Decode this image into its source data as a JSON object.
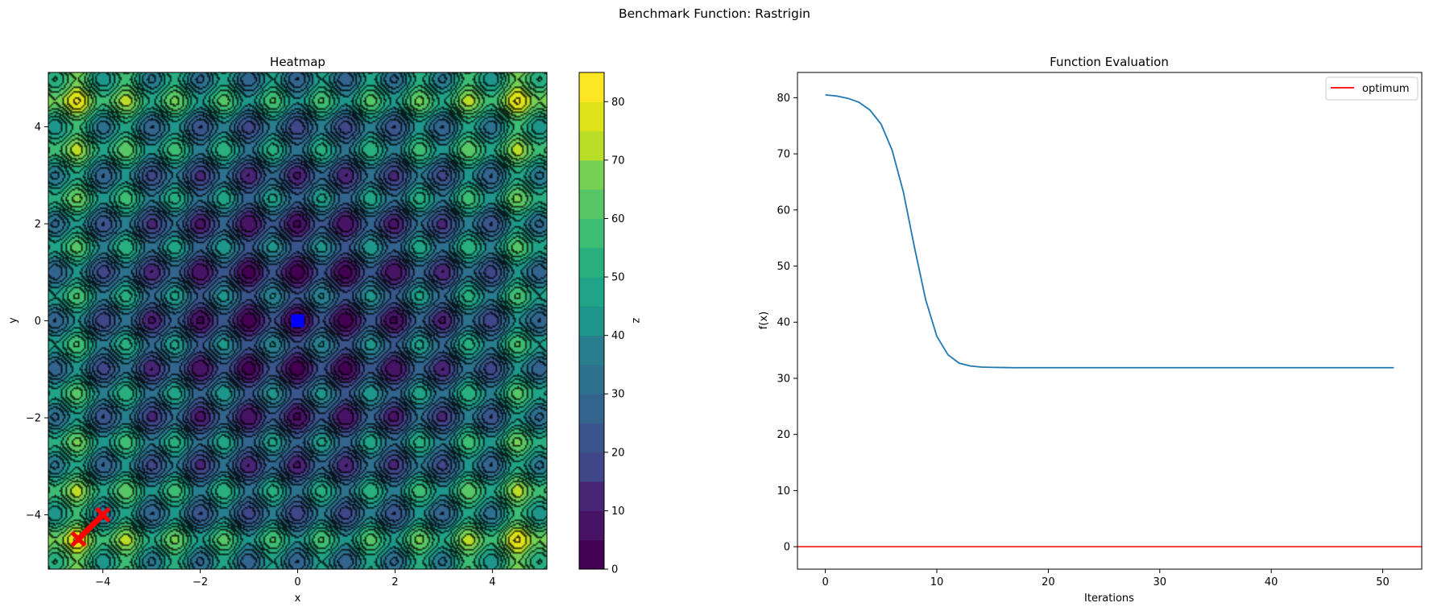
{
  "figure": {
    "suptitle": "Benchmark Function: Rastrigin"
  },
  "chart_data": [
    {
      "type": "heatmap",
      "function": "rastrigin",
      "title": "Heatmap",
      "xlabel": "x",
      "ylabel": "y",
      "xlim": [
        -5.12,
        5.12
      ],
      "ylim": [
        -5.12,
        5.12
      ],
      "xticks": [
        -4,
        -2,
        0,
        2,
        4
      ],
      "yticks": [
        -4,
        -2,
        0,
        2,
        4
      ],
      "colorbar": {
        "label": "z",
        "ticks": [
          0,
          10,
          20,
          30,
          40,
          50,
          60,
          70,
          80
        ],
        "levels": [
          0,
          5,
          10,
          15,
          20,
          25,
          30,
          35,
          40,
          45,
          50,
          55,
          60,
          65,
          70,
          75,
          80,
          85
        ]
      },
      "colors": [
        "#440154",
        "#471365",
        "#482475",
        "#453781",
        "#3f4788",
        "#39558c",
        "#32648e",
        "#2d718e",
        "#287d8e",
        "#238a8d",
        "#1f968b",
        "#20a386",
        "#29af7f",
        "#3dbc74",
        "#56c667",
        "#75d054",
        "#95d840",
        "#bade28",
        "#dde318",
        "#fde725"
      ],
      "path": [
        [
          -4.0,
          -4.0
        ],
        [
          -4.5,
          -4.5
        ]
      ],
      "path_color": "#ff0000",
      "optimum": [
        0,
        0
      ],
      "optimum_color": "#0000ff"
    },
    {
      "type": "line",
      "title": "Function Evaluation",
      "xlabel": "Iterations",
      "ylabel": "f(x)",
      "xlim": [
        -2.5,
        53.5
      ],
      "ylim": [
        -4.0,
        84.5
      ],
      "xticks": [
        0,
        10,
        20,
        30,
        40,
        50
      ],
      "yticks": [
        0,
        10,
        20,
        30,
        40,
        50,
        60,
        70,
        80
      ],
      "legend": {
        "position": "top-right",
        "entries": [
          "optimum"
        ]
      },
      "series": [
        {
          "values": [
            80.5,
            80.3,
            79.9,
            79.2,
            77.8,
            75.3,
            70.6,
            63.2,
            53.3,
            44.0,
            37.5,
            34.2,
            32.7,
            32.2,
            32.0,
            31.95,
            31.92,
            31.9,
            31.9,
            31.9,
            31.9,
            31.9,
            31.9,
            31.9,
            31.9,
            31.9,
            31.9,
            31.9,
            31.9,
            31.9,
            31.9,
            31.9,
            31.9,
            31.9,
            31.9,
            31.9,
            31.9,
            31.9,
            31.9,
            31.9,
            31.9,
            31.9,
            31.9,
            31.9,
            31.9,
            31.9,
            31.9,
            31.9,
            31.9,
            31.9,
            31.9,
            31.9
          ],
          "color": "#1f77b4"
        }
      ],
      "hline": {
        "name": "optimum",
        "y": 0,
        "color": "#ff0000"
      }
    }
  ]
}
